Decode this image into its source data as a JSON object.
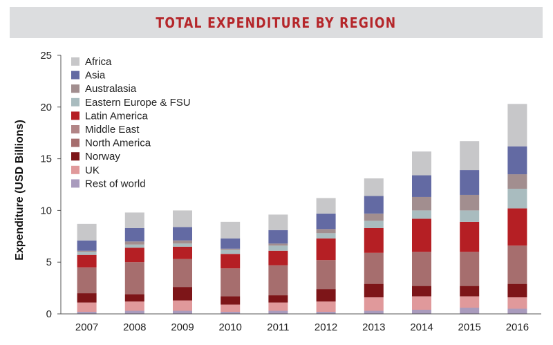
{
  "title": "TOTAL EXPENDITURE BY REGION",
  "chart_data": {
    "type": "bar",
    "stacked": true,
    "title": "TOTAL EXPENDITURE BY REGION",
    "xlabel": "",
    "ylabel": "Expenditure (USD Billions)",
    "ylim": [
      0,
      25
    ],
    "yticks": [
      0,
      5,
      10,
      15,
      20,
      25
    ],
    "grid": false,
    "legend_position": "top-left",
    "categories": [
      "2007",
      "2008",
      "2009",
      "2010",
      "2011",
      "2012",
      "2013",
      "2014",
      "2015",
      "2016"
    ],
    "series": [
      {
        "name": "Rest of world",
        "color": "#a99bbd",
        "values": [
          0.2,
          0.3,
          0.3,
          0.2,
          0.3,
          0.2,
          0.3,
          0.4,
          0.6,
          0.5
        ]
      },
      {
        "name": "UK",
        "color": "#e0999b",
        "values": [
          0.9,
          0.9,
          1.0,
          0.7,
          0.8,
          1.0,
          1.3,
          1.3,
          1.1,
          1.1
        ]
      },
      {
        "name": "Norway",
        "color": "#7d1518",
        "values": [
          0.9,
          0.7,
          1.3,
          0.8,
          0.7,
          1.2,
          1.3,
          1.0,
          1.0,
          1.3
        ]
      },
      {
        "name": "North America",
        "color": "#a66e6e",
        "values": [
          2.5,
          3.1,
          2.7,
          2.7,
          2.9,
          2.8,
          3.0,
          3.3,
          3.3,
          3.7
        ]
      },
      {
        "name": "Middle East",
        "color": "#b28586",
        "values": [
          0,
          0,
          0,
          0,
          0,
          0,
          0,
          0,
          0,
          0
        ]
      },
      {
        "name": "Latin America",
        "color": "#b51f24",
        "values": [
          1.2,
          1.4,
          1.2,
          1.4,
          1.4,
          2.1,
          2.4,
          3.2,
          2.9,
          3.6
        ]
      },
      {
        "name": "Eastern Europe & FSU",
        "color": "#a9bcbf",
        "values": [
          0.3,
          0.3,
          0.3,
          0.4,
          0.5,
          0.5,
          0.7,
          0.8,
          1.1,
          1.9
        ]
      },
      {
        "name": "Australasia",
        "color": "#a28e8f",
        "values": [
          0.1,
          0.3,
          0.3,
          0.1,
          0.2,
          0.4,
          0.7,
          1.3,
          1.5,
          1.4
        ]
      },
      {
        "name": "Asia",
        "color": "#636aa3",
        "values": [
          1.0,
          1.3,
          1.3,
          1.0,
          1.3,
          1.5,
          1.7,
          2.1,
          2.4,
          2.7
        ]
      },
      {
        "name": "Africa",
        "color": "#c7c7c9",
        "values": [
          1.6,
          1.5,
          1.6,
          1.6,
          1.5,
          1.5,
          1.7,
          2.3,
          2.8,
          4.1
        ]
      }
    ]
  }
}
